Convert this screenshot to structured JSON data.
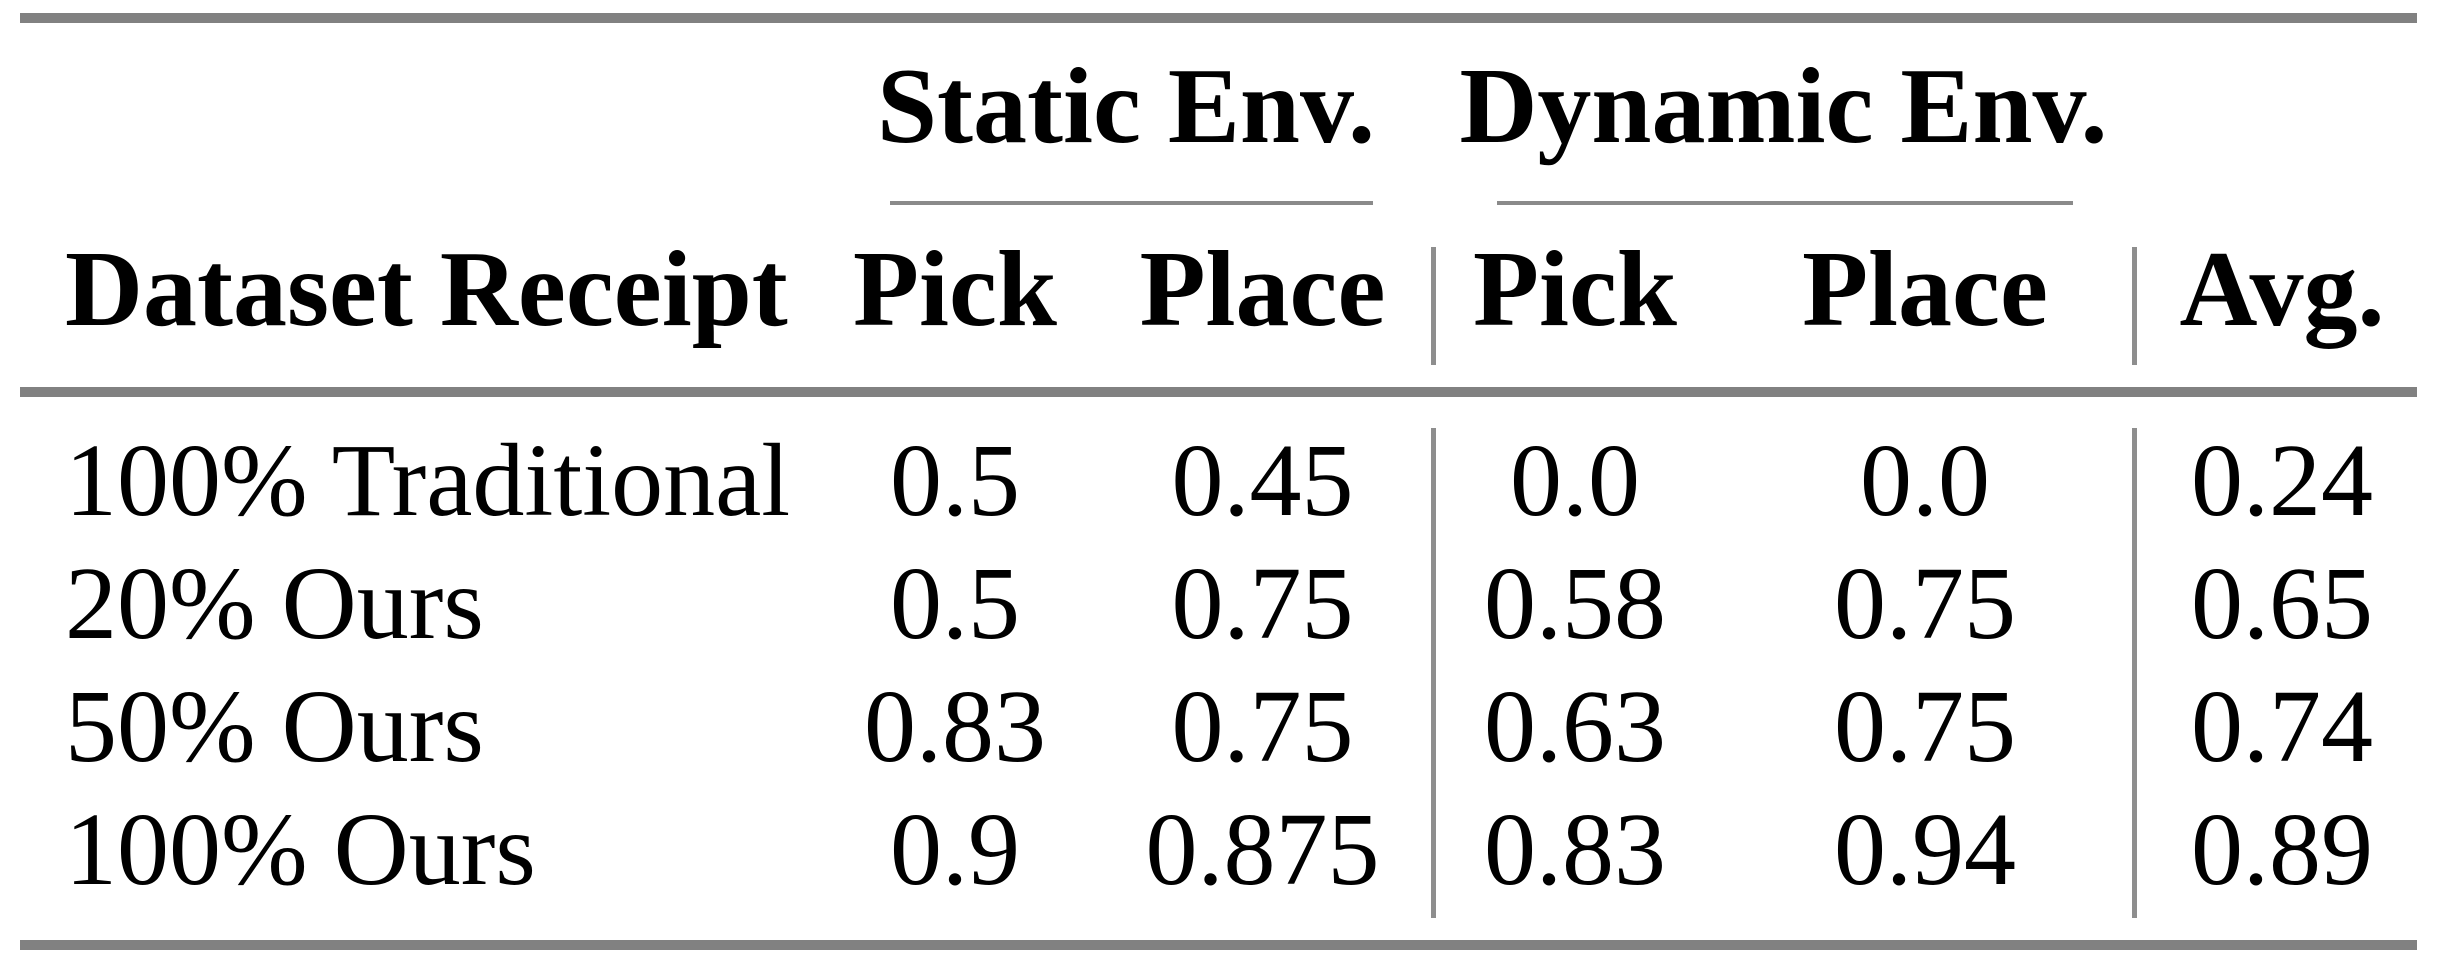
{
  "table": {
    "col_groups": [
      {
        "label": "Static Env."
      },
      {
        "label": "Dynamic Env."
      }
    ],
    "columns": [
      "Dataset Receipt",
      "Pick",
      "Place",
      "Pick",
      "Place",
      "Avg."
    ],
    "rows": [
      {
        "label": "100% Traditional",
        "values": [
          "0.5",
          "0.45",
          "0.0",
          "0.0",
          "0.24"
        ]
      },
      {
        "label": "20% Ours",
        "values": [
          "0.5",
          "0.75",
          "0.58",
          "0.75",
          "0.65"
        ]
      },
      {
        "label": "50% Ours",
        "values": [
          "0.83",
          "0.75",
          "0.63",
          "0.75",
          "0.74"
        ]
      },
      {
        "label": "100% Ours",
        "values": [
          "0.9",
          "0.875",
          "0.83",
          "0.94",
          "0.89"
        ]
      }
    ],
    "colors": {
      "background": "#ffffff",
      "text": "#000000",
      "horizontal_rule_gray": "#818181",
      "cmidrule_gray": "#8a8a8a",
      "vertical_rule_gray": "#8e8e8e"
    }
  }
}
